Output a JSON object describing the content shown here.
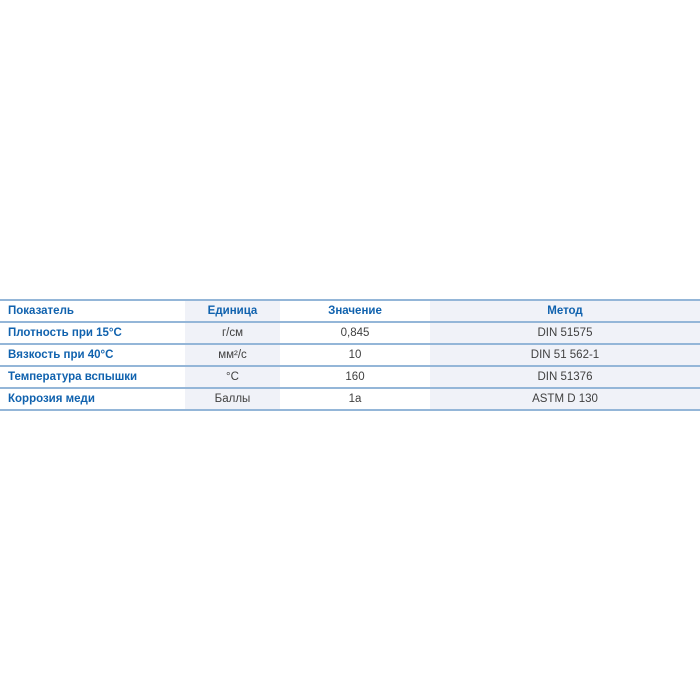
{
  "page": {
    "background": "#ffffff"
  },
  "table": {
    "columns": [
      {
        "label": "Показатель"
      },
      {
        "label": "Единица"
      },
      {
        "label": "Значение"
      },
      {
        "label": "Метод"
      }
    ],
    "rows": [
      {
        "indicator": "Плотность при 15°C",
        "unit": "г/см",
        "value": "0,845",
        "method": "DIN 51575"
      },
      {
        "indicator": "Вязкость при 40°C",
        "unit": "мм²/с",
        "value": "10",
        "method": "DIN 51 562-1"
      },
      {
        "indicator": "Температура вспышки",
        "unit": "°C",
        "value": "160",
        "method": "DIN 51376"
      },
      {
        "indicator": "Коррозия меди",
        "unit": "Баллы",
        "value": "1a",
        "method": "ASTM D 130"
      }
    ],
    "colors": {
      "header_text": "#1062ae",
      "row_label_text": "#1062ae",
      "cell_text": "#3f3f3f",
      "shaded_column_bg": "#f0f2f8",
      "border": "#94b6d8"
    }
  },
  "chart_data": {
    "type": "table",
    "columns": [
      "Показатель",
      "Единица",
      "Значение",
      "Метод"
    ],
    "rows": [
      [
        "Плотность при 15°C",
        "г/см",
        "0,845",
        "DIN 51575"
      ],
      [
        "Вязкость при 40°C",
        "мм²/с",
        "10",
        "DIN 51 562-1"
      ],
      [
        "Температура вспышки",
        "°C",
        "160",
        "DIN 51376"
      ],
      [
        "Коррозия меди",
        "Баллы",
        "1a",
        "ASTM D 130"
      ]
    ]
  }
}
